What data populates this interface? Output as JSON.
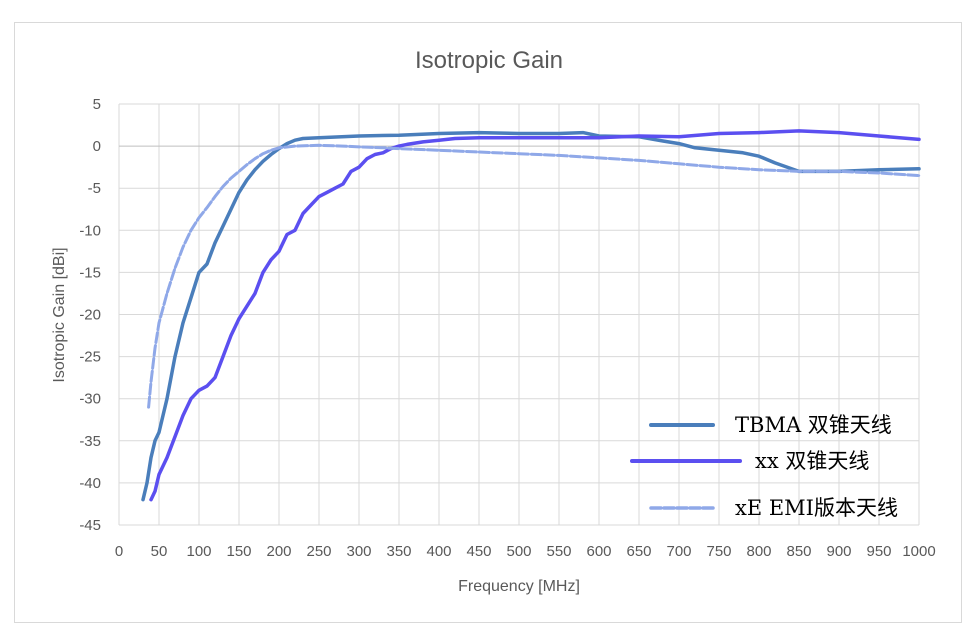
{
  "chart_data": {
    "type": "line",
    "title": "Isotropic Gain",
    "xlabel": "Frequency [MHz]",
    "ylabel": "Isotropic Gain [dBi]",
    "xlim": [
      0,
      1000
    ],
    "ylim": [
      -45,
      5
    ],
    "xticks": [
      0,
      50,
      100,
      150,
      200,
      250,
      300,
      350,
      400,
      450,
      500,
      550,
      600,
      650,
      700,
      750,
      800,
      850,
      900,
      950,
      1000
    ],
    "yticks": [
      5,
      0,
      -5,
      -10,
      -15,
      -20,
      -25,
      -30,
      -35,
      -40,
      -45
    ],
    "grid": true,
    "legend_position": "bottom-right",
    "series": [
      {
        "name": "TBMA 双锥天线",
        "color": "#4a7ebb",
        "x": [
          30,
          35,
          40,
          45,
          50,
          55,
          60,
          70,
          80,
          90,
          100,
          110,
          120,
          130,
          140,
          150,
          160,
          170,
          180,
          190,
          200,
          210,
          220,
          230,
          250,
          300,
          350,
          400,
          450,
          500,
          550,
          580,
          600,
          650,
          680,
          700,
          720,
          750,
          780,
          800,
          820,
          850,
          900,
          950,
          1000
        ],
        "y": [
          -42,
          -40,
          -37,
          -35,
          -34,
          -32,
          -30,
          -25,
          -21,
          -18,
          -15,
          -14,
          -11.5,
          -9.5,
          -7.5,
          -5.5,
          -4,
          -2.8,
          -1.8,
          -1,
          -0.3,
          0.3,
          0.7,
          0.9,
          1,
          1.2,
          1.3,
          1.5,
          1.6,
          1.5,
          1.5,
          1.6,
          1.2,
          1.1,
          0.6,
          0.3,
          -0.2,
          -0.5,
          -0.8,
          -1.2,
          -2,
          -3,
          -3,
          -2.8,
          -2.7
        ]
      },
      {
        "name": "xx 双锥天线",
        "color": "#5b4ff0",
        "x": [
          40,
          45,
          50,
          60,
          70,
          80,
          90,
          100,
          110,
          120,
          130,
          140,
          150,
          160,
          170,
          180,
          190,
          200,
          210,
          220,
          230,
          240,
          250,
          260,
          270,
          280,
          290,
          300,
          310,
          320,
          330,
          340,
          350,
          360,
          380,
          400,
          420,
          450,
          500,
          550,
          600,
          650,
          700,
          750,
          800,
          850,
          900,
          950,
          1000
        ],
        "y": [
          -42,
          -41,
          -39,
          -37,
          -34.5,
          -32,
          -30,
          -29,
          -28.5,
          -27.5,
          -25,
          -22.5,
          -20.5,
          -19,
          -17.5,
          -15,
          -13.5,
          -12.5,
          -10.5,
          -10,
          -8,
          -7,
          -6,
          -5.5,
          -5,
          -4.5,
          -3,
          -2.5,
          -1.5,
          -1,
          -0.8,
          -0.3,
          0,
          0.2,
          0.5,
          0.7,
          0.9,
          1,
          1,
          1,
          1,
          1.2,
          1.1,
          1.5,
          1.6,
          1.8,
          1.6,
          1.2,
          0.8
        ]
      },
      {
        "name": "xE EMI版本天线",
        "color": "#8fa8e8",
        "x": [
          37,
          40,
          45,
          50,
          60,
          70,
          80,
          90,
          100,
          110,
          120,
          130,
          140,
          150,
          160,
          170,
          180,
          190,
          200,
          220,
          250,
          280,
          300,
          330,
          350,
          400,
          450,
          500,
          550,
          600,
          650,
          700,
          750,
          800,
          850,
          900,
          950,
          1000
        ],
        "y": [
          -31,
          -28,
          -24,
          -21,
          -17.5,
          -14.5,
          -12,
          -10,
          -8.5,
          -7.3,
          -6,
          -4.8,
          -3.8,
          -3,
          -2.2,
          -1.5,
          -0.9,
          -0.5,
          -0.2,
          0,
          0.1,
          0,
          -0.1,
          -0.2,
          -0.3,
          -0.5,
          -0.7,
          -0.9,
          -1.1,
          -1.4,
          -1.7,
          -2.1,
          -2.5,
          -2.8,
          -3,
          -3,
          -3.2,
          -3.5
        ]
      }
    ]
  }
}
